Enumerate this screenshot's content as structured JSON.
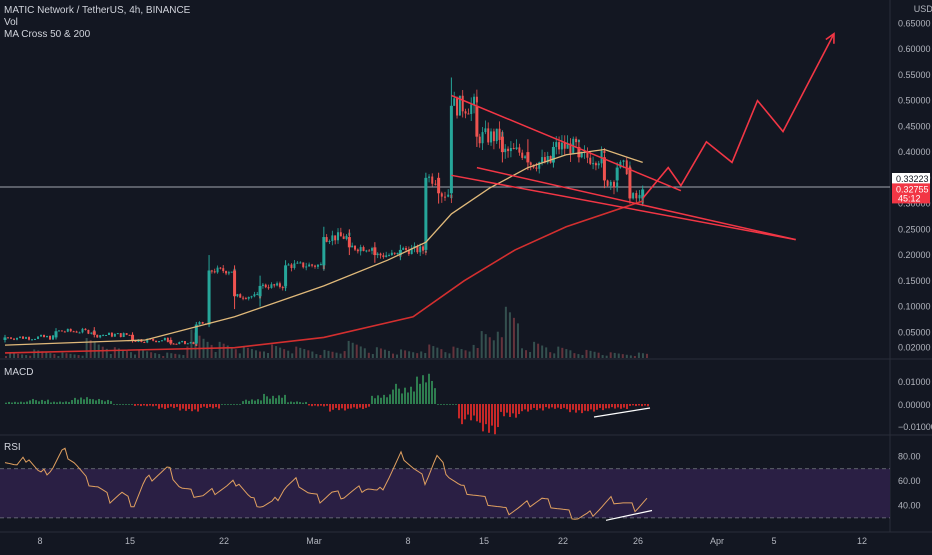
{
  "header": {
    "symbol_line": "MATIC Network / TetherUS, 4h, BINANCE",
    "vol_label": "Vol",
    "ma_label": "MA Cross 50 & 200"
  },
  "axis": {
    "currency": "USDT",
    "price_ticks": [
      "0.65000",
      "0.60000",
      "0.55000",
      "0.50000",
      "0.45000",
      "0.40000",
      "0.35000",
      "0.30000",
      "0.25000",
      "0.20000",
      "0.15000",
      "0.10000",
      "0.05000",
      "0.02000"
    ],
    "macd_ticks": [
      "0.01000",
      "0.00000",
      "−0.01000"
    ],
    "rsi_ticks": [
      "80.00",
      "60.00",
      "40.00"
    ],
    "date_ticks": [
      "8",
      "15",
      "22",
      "Mar",
      "8",
      "15",
      "22",
      "26",
      "Apr",
      "5",
      "12"
    ],
    "current_price": "0.33223",
    "last_price": "0.32755",
    "countdown": "45:12"
  },
  "panes": {
    "macd_label": "MACD",
    "rsi_label": "RSI"
  },
  "colors": {
    "up": "#26a69a",
    "down": "#ef5350",
    "ma50": "#e0b97a",
    "ma200": "#d32f2f",
    "drawing": "#f23645",
    "rsi_line": "#e0a060",
    "rsi_band": "#2a1f44"
  },
  "chart_data": {
    "type": "candlestick",
    "ylim": [
      0.0,
      0.68
    ],
    "x_range": [
      "2021-02-04",
      "2021-04-14"
    ],
    "candles": [
      {
        "d": "2021-02-04",
        "o": 0.035,
        "h": 0.045,
        "l": 0.03,
        "c": 0.04
      },
      {
        "d": "2021-02-08",
        "o": 0.04,
        "h": 0.058,
        "l": 0.036,
        "c": 0.052
      },
      {
        "d": "2021-02-11",
        "o": 0.052,
        "h": 0.06,
        "l": 0.04,
        "c": 0.045
      },
      {
        "d": "2021-02-14",
        "o": 0.045,
        "h": 0.05,
        "l": 0.03,
        "c": 0.035
      },
      {
        "d": "2021-02-17",
        "o": 0.035,
        "h": 0.04,
        "l": 0.025,
        "c": 0.028
      },
      {
        "d": "2021-02-19",
        "o": 0.028,
        "h": 0.07,
        "l": 0.026,
        "c": 0.065
      },
      {
        "d": "2021-02-20",
        "o": 0.065,
        "h": 0.2,
        "l": 0.06,
        "c": 0.17
      },
      {
        "d": "2021-02-22",
        "o": 0.17,
        "h": 0.18,
        "l": 0.095,
        "c": 0.12
      },
      {
        "d": "2021-02-24",
        "o": 0.12,
        "h": 0.16,
        "l": 0.1,
        "c": 0.14
      },
      {
        "d": "2021-02-26",
        "o": 0.14,
        "h": 0.19,
        "l": 0.13,
        "c": 0.18
      },
      {
        "d": "2021-03-01",
        "o": 0.18,
        "h": 0.255,
        "l": 0.17,
        "c": 0.235
      },
      {
        "d": "2021-03-03",
        "o": 0.235,
        "h": 0.25,
        "l": 0.2,
        "c": 0.215
      },
      {
        "d": "2021-03-05",
        "o": 0.215,
        "h": 0.225,
        "l": 0.185,
        "c": 0.2
      },
      {
        "d": "2021-03-07",
        "o": 0.2,
        "h": 0.22,
        "l": 0.19,
        "c": 0.21
      },
      {
        "d": "2021-03-09",
        "o": 0.21,
        "h": 0.36,
        "l": 0.205,
        "c": 0.35
      },
      {
        "d": "2021-03-10",
        "o": 0.35,
        "h": 0.36,
        "l": 0.3,
        "c": 0.32
      },
      {
        "d": "2021-03-11",
        "o": 0.32,
        "h": 0.545,
        "l": 0.31,
        "c": 0.49
      },
      {
        "d": "2021-03-13",
        "o": 0.49,
        "h": 0.5,
        "l": 0.41,
        "c": 0.43
      },
      {
        "d": "2021-03-15",
        "o": 0.43,
        "h": 0.44,
        "l": 0.38,
        "c": 0.4
      },
      {
        "d": "2021-03-17",
        "o": 0.4,
        "h": 0.425,
        "l": 0.365,
        "c": 0.38
      },
      {
        "d": "2021-03-19",
        "o": 0.38,
        "h": 0.42,
        "l": 0.37,
        "c": 0.41
      },
      {
        "d": "2021-03-21",
        "o": 0.41,
        "h": 0.42,
        "l": 0.38,
        "c": 0.39
      },
      {
        "d": "2021-03-23",
        "o": 0.39,
        "h": 0.395,
        "l": 0.33,
        "c": 0.345
      },
      {
        "d": "2021-03-24",
        "o": 0.345,
        "h": 0.38,
        "l": 0.325,
        "c": 0.37
      },
      {
        "d": "2021-03-25",
        "o": 0.37,
        "h": 0.375,
        "l": 0.3,
        "c": 0.31
      },
      {
        "d": "2021-03-26",
        "o": 0.31,
        "h": 0.335,
        "l": 0.295,
        "c": 0.3275
      }
    ],
    "ma50": [
      {
        "d": "2021-02-04",
        "v": 0.025
      },
      {
        "d": "2021-02-15",
        "v": 0.035
      },
      {
        "d": "2021-02-22",
        "v": 0.08
      },
      {
        "d": "2021-03-01",
        "v": 0.14
      },
      {
        "d": "2021-03-06",
        "v": 0.19
      },
      {
        "d": "2021-03-09",
        "v": 0.225
      },
      {
        "d": "2021-03-11",
        "v": 0.28
      },
      {
        "d": "2021-03-14",
        "v": 0.33
      },
      {
        "d": "2021-03-17",
        "v": 0.37
      },
      {
        "d": "2021-03-20",
        "v": 0.395
      },
      {
        "d": "2021-03-23",
        "v": 0.405
      },
      {
        "d": "2021-03-26",
        "v": 0.38
      }
    ],
    "ma200": [
      {
        "d": "2021-02-04",
        "v": 0.01
      },
      {
        "d": "2021-02-22",
        "v": 0.02
      },
      {
        "d": "2021-03-01",
        "v": 0.04
      },
      {
        "d": "2021-03-08",
        "v": 0.08
      },
      {
        "d": "2021-03-12",
        "v": 0.15
      },
      {
        "d": "2021-03-16",
        "v": 0.21
      },
      {
        "d": "2021-03-20",
        "v": 0.255
      },
      {
        "d": "2021-03-26",
        "v": 0.305
      }
    ],
    "drawings": {
      "wedge_upper": [
        {
          "d": "2021-03-11",
          "v": 0.51
        },
        {
          "d": "2021-03-29",
          "v": 0.325
        }
      ],
      "wedge_lower": [
        {
          "d": "2021-03-13",
          "v": 0.37
        },
        {
          "d": "2021-04-07",
          "v": 0.23
        }
      ],
      "support_line": [
        {
          "d": "2021-03-11",
          "v": 0.355
        },
        {
          "d": "2021-04-07",
          "v": 0.23
        }
      ],
      "projection": [
        {
          "d": "2021-03-26",
          "v": 0.31
        },
        {
          "d": "2021-03-28",
          "v": 0.37
        },
        {
          "d": "2021-03-29",
          "v": 0.335
        },
        {
          "d": "2021-03-31",
          "v": 0.42
        },
        {
          "d": "2021-04-02",
          "v": 0.38
        },
        {
          "d": "2021-04-04",
          "v": 0.5
        },
        {
          "d": "2021-04-06",
          "v": 0.44
        },
        {
          "d": "2021-04-10",
          "v": 0.63
        }
      ]
    },
    "volume_rel": [
      0.1,
      0.15,
      0.1,
      0.35,
      0.2,
      0.15,
      0.1,
      0.5,
      0.3,
      0.2,
      0.25,
      0.2,
      0.15,
      0.3,
      0.2,
      0.15,
      0.25,
      0.2,
      0.5,
      0.9,
      0.3,
      0.2,
      0.15,
      0.1,
      0.1
    ],
    "macd_hist": [
      0.001,
      0.002,
      0.001,
      0.003,
      0.002,
      0.0,
      -0.001,
      -0.002,
      -0.003,
      -0.002,
      0.0,
      0.002,
      0.004,
      0.001,
      -0.001,
      -0.003,
      -0.002,
      0.004,
      0.008,
      0.012,
      0.0,
      -0.008,
      -0.012,
      -0.006,
      -0.003,
      -0.002,
      -0.004,
      -0.003,
      -0.002,
      -0.001
    ],
    "rsi": [
      78,
      72,
      80,
      65,
      70,
      85,
      75,
      60,
      55,
      45,
      50,
      40,
      60,
      65,
      70,
      55,
      50,
      48,
      52,
      55,
      60,
      45,
      40,
      42,
      55,
      60,
      50,
      45,
      50,
      48,
      52,
      55,
      50,
      65,
      82,
      70,
      60,
      80,
      65,
      55,
      50,
      45,
      40,
      35,
      38,
      42,
      45,
      40,
      35,
      30,
      32,
      38,
      45,
      42,
      38,
      45
    ]
  }
}
